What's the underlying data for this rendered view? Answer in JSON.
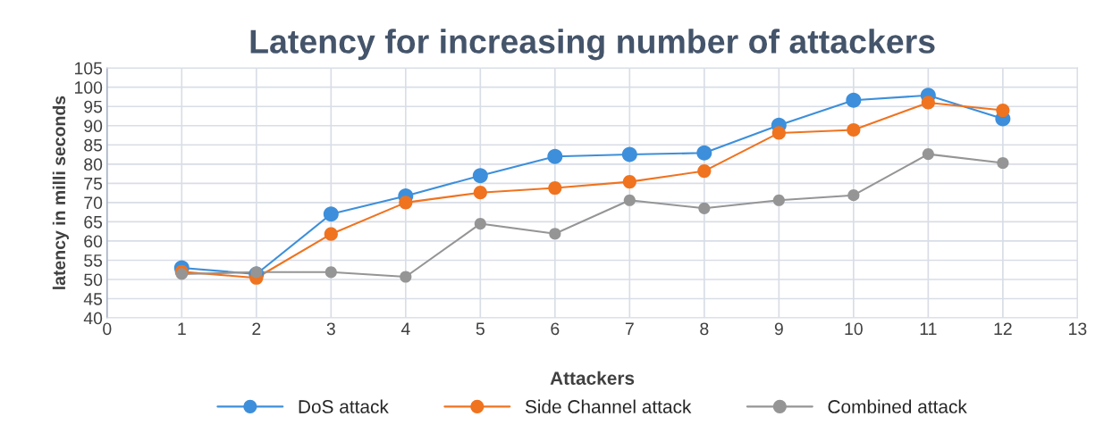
{
  "chart_data": {
    "type": "line",
    "title": "Latency for increasing number of attackers",
    "xlabel": "Attackers",
    "ylabel": "latency in milli seconds",
    "x": [
      1,
      2,
      3,
      4,
      5,
      6,
      7,
      8,
      9,
      10,
      11,
      12
    ],
    "series": [
      {
        "name": "DoS attack",
        "color": "#3d8fdb",
        "values": [
          53,
          51.4,
          67,
          71.7,
          77,
          82,
          82.5,
          82.9,
          90.1,
          96.6,
          97.9,
          91.8
        ]
      },
      {
        "name": "Side Channel attack",
        "color": "#f0731f",
        "values": [
          52,
          50.4,
          61.8,
          70,
          72.6,
          73.8,
          75.4,
          78.2,
          88.1,
          88.9,
          96,
          94
        ]
      },
      {
        "name": "Combined attack",
        "color": "#959595",
        "values": [
          51.4,
          51.9,
          51.9,
          50.7,
          64.5,
          61.9,
          70.6,
          68.5,
          70.6,
          71.9,
          82.6,
          80.3
        ]
      }
    ],
    "xlim": [
      0,
      13
    ],
    "xticks": [
      0,
      1,
      2,
      3,
      4,
      5,
      6,
      7,
      8,
      9,
      10,
      11,
      12,
      13
    ],
    "ylim": [
      40,
      105
    ],
    "yticks": [
      40,
      45,
      50,
      55,
      60,
      65,
      70,
      75,
      80,
      85,
      90,
      95,
      100,
      105
    ],
    "grid": true,
    "legend": "bottom",
    "marker": "circle",
    "line_style": "solid"
  }
}
